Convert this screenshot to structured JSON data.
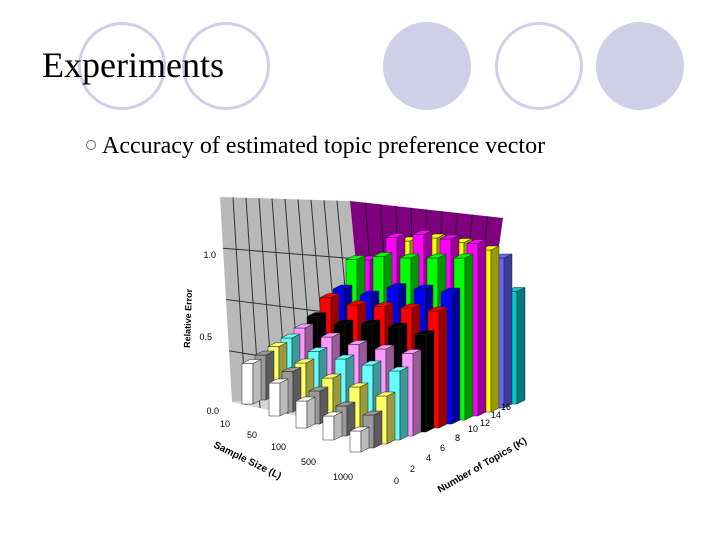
{
  "slide": {
    "title": "Experiments",
    "bullet": "Accuracy of estimated topic preference vector"
  },
  "colors": {
    "decor_fill": "#cfd0e8",
    "back_wall": "#7f007f",
    "side_wall": "#b8b8b8",
    "floor": "#d6d6d6"
  },
  "chart_data": {
    "type": "bar3d",
    "title": "",
    "zlabel": "Relative Error",
    "zticks": [
      "0.0",
      "0.5",
      "1.0"
    ],
    "zlim": [
      0,
      1.25
    ],
    "xlabel": "Sample Size (L)",
    "x_categories": [
      "10",
      "50",
      "100",
      "500",
      "1000"
    ],
    "ylabel": "Number of Topics (K)",
    "y_categories": [
      "0",
      "2",
      "4",
      "6",
      "8",
      "10",
      "12",
      "14",
      "16"
    ],
    "series_colors": [
      "#ffffff",
      "#999999",
      "#ffff66",
      "#66ffff",
      "#ff99ff",
      "#000000",
      "#ff0000",
      "#0000ff",
      "#00ff00",
      "#ff00ff",
      "#ffff00",
      "#6666ff",
      "#00cccc"
    ],
    "values": [
      [
        0.27,
        0.3,
        0.33,
        0.36,
        0.4,
        0.45,
        0.55,
        0.58,
        0.75,
        0.72,
        0.65,
        0.68,
        0.55
      ],
      [
        0.22,
        0.27,
        0.3,
        0.35,
        0.42,
        0.48,
        0.58,
        0.62,
        0.85,
        0.95,
        0.9,
        0.8,
        0.6
      ],
      [
        0.18,
        0.22,
        0.28,
        0.38,
        0.45,
        0.56,
        0.65,
        0.75,
        0.92,
        1.05,
        1.0,
        0.9,
        0.62
      ],
      [
        0.16,
        0.2,
        0.3,
        0.42,
        0.5,
        0.62,
        0.72,
        0.82,
        1.0,
        1.1,
        1.05,
        0.95,
        0.7
      ],
      [
        0.14,
        0.22,
        0.32,
        0.46,
        0.55,
        0.65,
        0.78,
        0.88,
        1.08,
        1.15,
        1.08,
        1.0,
        0.75
      ]
    ]
  }
}
